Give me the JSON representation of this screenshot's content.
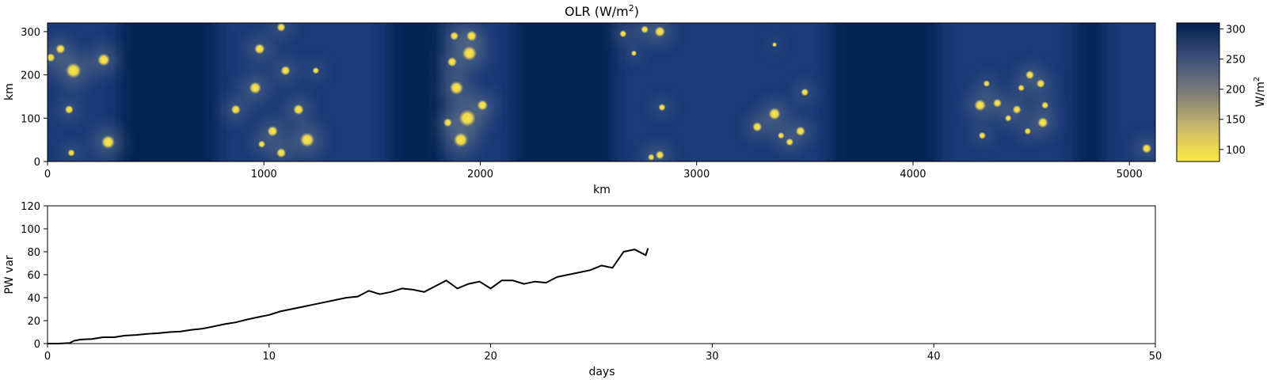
{
  "chart_data": [
    {
      "type": "heatmap",
      "title": "OLR (W/m²)",
      "title_main": "OLR (W/m",
      "title_sup": "2",
      "title_close": ")",
      "xlabel": "km",
      "ylabel": "km",
      "xlim": [
        0,
        5120
      ],
      "ylim": [
        0,
        320
      ],
      "xticks": [
        0,
        1000,
        2000,
        3000,
        4000,
        5000
      ],
      "yticks": [
        0,
        100,
        200,
        300
      ],
      "colormap": "cividis_r",
      "colors": {
        "low": "#ffe945",
        "mid": "#7c7b78",
        "high": "#00204d"
      },
      "colorbar": {
        "label": "W/m²",
        "label_main": "W/m",
        "label_sup": "2",
        "range": [
          80,
          310
        ],
        "ticks": [
          100,
          150,
          200,
          250,
          300
        ]
      },
      "clear_bands_km": [
        [
          330,
          780
        ],
        [
          1580,
          1820
        ],
        [
          2150,
          2620
        ],
        [
          3620,
          4120
        ],
        [
          4750,
          4880
        ]
      ],
      "convective_cells": [
        {
          "x": 120,
          "y": 210,
          "r": 32
        },
        {
          "x": 260,
          "y": 235,
          "r": 26
        },
        {
          "x": 60,
          "y": 260,
          "r": 20
        },
        {
          "x": 100,
          "y": 120,
          "r": 18
        },
        {
          "x": 280,
          "y": 45,
          "r": 28
        },
        {
          "x": 110,
          "y": 20,
          "r": 15
        },
        {
          "x": 15,
          "y": 240,
          "r": 18
        },
        {
          "x": 980,
          "y": 260,
          "r": 22
        },
        {
          "x": 1080,
          "y": 310,
          "r": 18
        },
        {
          "x": 960,
          "y": 170,
          "r": 25
        },
        {
          "x": 1100,
          "y": 210,
          "r": 20
        },
        {
          "x": 1160,
          "y": 120,
          "r": 22
        },
        {
          "x": 1040,
          "y": 70,
          "r": 22
        },
        {
          "x": 1200,
          "y": 50,
          "r": 30
        },
        {
          "x": 1080,
          "y": 20,
          "r": 20
        },
        {
          "x": 990,
          "y": 40,
          "r": 15
        },
        {
          "x": 870,
          "y": 120,
          "r": 20
        },
        {
          "x": 1240,
          "y": 210,
          "r": 14
        },
        {
          "x": 1870,
          "y": 230,
          "r": 20
        },
        {
          "x": 1950,
          "y": 250,
          "r": 30
        },
        {
          "x": 1960,
          "y": 290,
          "r": 22
        },
        {
          "x": 1890,
          "y": 170,
          "r": 28
        },
        {
          "x": 1940,
          "y": 100,
          "r": 35
        },
        {
          "x": 1910,
          "y": 50,
          "r": 30
        },
        {
          "x": 2010,
          "y": 130,
          "r": 22
        },
        {
          "x": 1880,
          "y": 290,
          "r": 18
        },
        {
          "x": 2660,
          "y": 295,
          "r": 15
        },
        {
          "x": 2760,
          "y": 305,
          "r": 16
        },
        {
          "x": 2830,
          "y": 300,
          "r": 22
        },
        {
          "x": 2840,
          "y": 125,
          "r": 15
        },
        {
          "x": 2790,
          "y": 10,
          "r": 14
        },
        {
          "x": 2830,
          "y": 15,
          "r": 18
        },
        {
          "x": 3280,
          "y": 80,
          "r": 20
        },
        {
          "x": 3360,
          "y": 110,
          "r": 25
        },
        {
          "x": 3430,
          "y": 45,
          "r": 16
        },
        {
          "x": 3480,
          "y": 70,
          "r": 20
        },
        {
          "x": 3500,
          "y": 160,
          "r": 16
        },
        {
          "x": 3360,
          "y": 270,
          "r": 10
        },
        {
          "x": 4310,
          "y": 130,
          "r": 24
        },
        {
          "x": 4390,
          "y": 135,
          "r": 18
        },
        {
          "x": 4440,
          "y": 100,
          "r": 14
        },
        {
          "x": 4480,
          "y": 120,
          "r": 18
        },
        {
          "x": 4540,
          "y": 200,
          "r": 18
        },
        {
          "x": 4590,
          "y": 180,
          "r": 18
        },
        {
          "x": 4600,
          "y": 90,
          "r": 22
        },
        {
          "x": 4610,
          "y": 130,
          "r": 15
        },
        {
          "x": 4320,
          "y": 60,
          "r": 15
        },
        {
          "x": 4530,
          "y": 70,
          "r": 14
        },
        {
          "x": 4500,
          "y": 170,
          "r": 14
        },
        {
          "x": 5080,
          "y": 30,
          "r": 20
        },
        {
          "x": 4340,
          "y": 180,
          "r": 14
        },
        {
          "x": 3390,
          "y": 60,
          "r": 14
        },
        {
          "x": 2710,
          "y": 250,
          "r": 12
        },
        {
          "x": 1850,
          "y": 90,
          "r": 18
        }
      ]
    },
    {
      "type": "line",
      "title": "",
      "xlabel": "days",
      "ylabel": "PW var",
      "xlim": [
        0,
        50
      ],
      "ylim": [
        0,
        120
      ],
      "xticks": [
        0,
        10,
        20,
        30,
        40,
        50
      ],
      "yticks": [
        0,
        20,
        40,
        60,
        80,
        100,
        120
      ],
      "series": [
        {
          "color": "#000000",
          "x": [
            0,
            0.5,
            1,
            1.2,
            1.5,
            2,
            2.5,
            3,
            3.5,
            4,
            4.5,
            5,
            5.5,
            6,
            6.5,
            7,
            7.5,
            8,
            8.5,
            9,
            9.5,
            10,
            10.5,
            11,
            11.5,
            12,
            12.5,
            13,
            13.5,
            14,
            14.5,
            15,
            15.5,
            16,
            16.5,
            17,
            17.5,
            18,
            18.5,
            19,
            19.5,
            20,
            20.5,
            21,
            21.5,
            22,
            22.5,
            23,
            23.5,
            24,
            24.5,
            25,
            25.5,
            26,
            26.5,
            27,
            27.1
          ],
          "y": [
            0,
            0,
            0.5,
            2.5,
            3.5,
            4,
            5.5,
            5.5,
            7,
            7.5,
            8.5,
            9,
            10,
            10.5,
            12,
            13,
            15,
            17,
            18.5,
            21,
            23,
            25,
            28,
            30,
            32,
            34,
            36,
            38,
            40,
            41,
            46,
            43,
            45,
            48,
            47,
            45,
            50,
            55,
            48,
            52,
            54,
            48,
            55,
            55,
            52,
            54,
            53,
            58,
            60,
            62,
            64,
            68,
            66,
            80,
            82,
            77,
            83
          ]
        }
      ]
    }
  ]
}
